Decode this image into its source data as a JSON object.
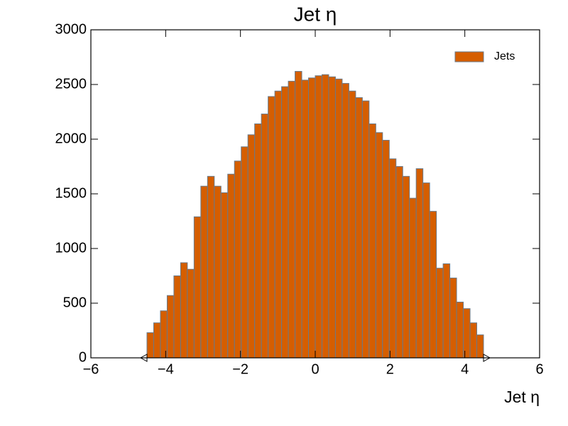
{
  "chart_data": {
    "type": "histogram",
    "title": "Jet η",
    "x_label": "Jet η",
    "bins": [
      -4.5,
      -4.32,
      -4.14,
      -3.96,
      -3.78,
      -3.6,
      -3.42,
      -3.24,
      -3.06,
      -2.88,
      -2.7,
      -2.52,
      -2.34,
      -2.16,
      -1.98,
      -1.8,
      -1.62,
      -1.44,
      -1.26,
      -1.08,
      -0.9,
      -0.72,
      -0.54,
      -0.36,
      -0.18,
      0,
      0.18,
      0.36,
      0.54,
      0.72,
      0.9,
      1.08,
      1.26,
      1.44,
      1.62,
      1.8,
      1.98,
      2.16,
      2.34,
      2.52,
      2.7,
      2.88,
      3.06,
      3.24,
      3.42,
      3.6,
      3.78,
      3.96,
      4.14,
      4.32,
      4.5
    ],
    "series": [
      {
        "name": "Jets",
        "color": "#d55e00",
        "edgecolor": "#6a7a8a",
        "values": [
          230,
          320,
          430,
          570,
          750,
          870,
          810,
          1290,
          1570,
          1660,
          1570,
          1510,
          1680,
          1800,
          1930,
          2040,
          2140,
          2230,
          2390,
          2440,
          2480,
          2530,
          2620,
          2540,
          2560,
          2580,
          2590,
          2570,
          2550,
          2510,
          2440,
          2380,
          2350,
          2140,
          2060,
          1990,
          1820,
          1750,
          1660,
          1460,
          1730,
          1600,
          1340,
          820,
          860,
          730,
          510,
          450,
          320,
          210
        ]
      }
    ],
    "xlim": [
      -6,
      6
    ],
    "ylim": [
      0,
      3000
    ],
    "xticks": [
      {
        "value": -6,
        "label": "−6"
      },
      {
        "value": -4,
        "label": "−4"
      },
      {
        "value": -2,
        "label": "−2"
      },
      0,
      2,
      4,
      6
    ],
    "yticks": [
      0,
      500,
      1000,
      1500,
      2000,
      2500,
      3000
    ],
    "legend": "upper right",
    "grid": false
  }
}
